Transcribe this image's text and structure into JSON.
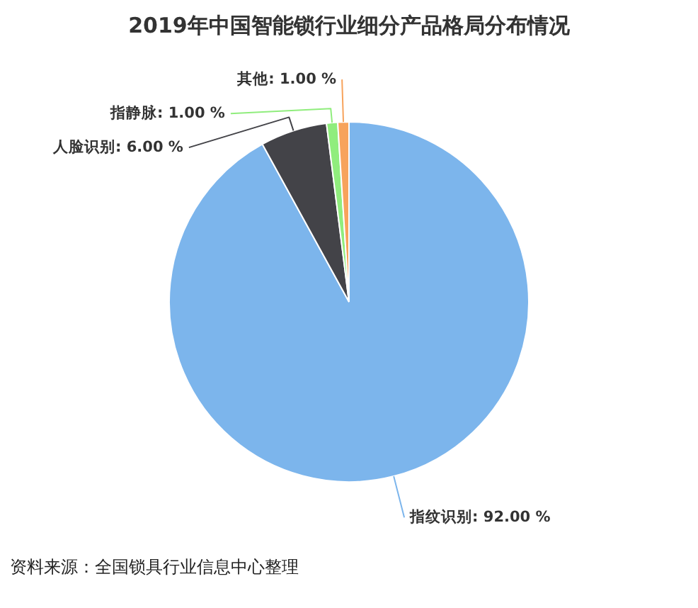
{
  "chart_data": {
    "type": "pie",
    "title": "2019年中国智能锁行业细分产品格局分布情况",
    "categories": [
      "指纹识别",
      "人脸识别",
      "指静脉",
      "其他"
    ],
    "values": [
      92,
      6,
      1,
      1
    ],
    "colors": [
      "#7cb5ec",
      "#434348",
      "#90ed7d",
      "#f7a35c"
    ],
    "value_labels": [
      "92.00 %",
      "6.00 %",
      "1.00 %",
      "1.00 %"
    ],
    "annotations": [
      "资料来源：全国锁具行业信息中心整理"
    ]
  }
}
